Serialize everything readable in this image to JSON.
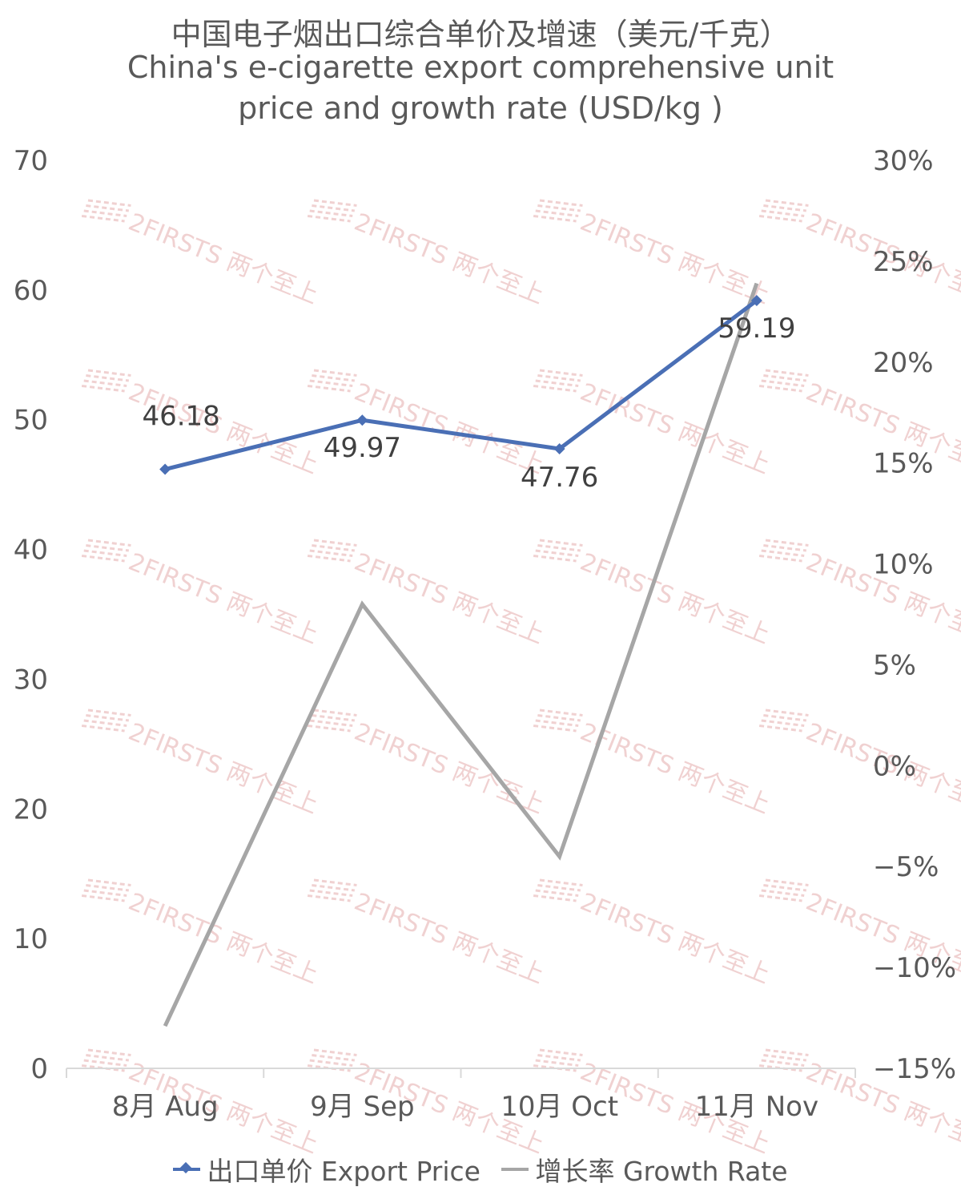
{
  "chart_data": {
    "type": "line",
    "title": "中国电子烟出口综合单价及增速（美元/千克）",
    "subtitle_line1": "China's e-cigarette export comprehensive unit",
    "subtitle_line2": "price and growth rate (USD/kg )",
    "categories": [
      "8月 Aug",
      "9月 Sep",
      "10月 Oct",
      "11月 Nov"
    ],
    "left_axis": {
      "ylim": [
        0,
        70
      ],
      "ticks": [
        "0",
        "10",
        "20",
        "30",
        "40",
        "50",
        "60",
        "70"
      ]
    },
    "right_axis": {
      "ylim": [
        -15,
        30
      ],
      "ticks": [
        "−15%",
        "−10%",
        "−5%",
        "0%",
        "5%",
        "10%",
        "15%",
        "20%",
        "25%",
        "30%"
      ]
    },
    "series": [
      {
        "name": "出口单价 Export Price",
        "axis": "left",
        "values": [
          46.18,
          49.97,
          47.76,
          59.19
        ],
        "labels": [
          "46.18",
          "49.97",
          "47.76",
          "59.19"
        ],
        "color": "#4a6fb5",
        "marker": "diamond"
      },
      {
        "name": "增长率 Growth Rate",
        "axis": "right",
        "values": [
          -12.9,
          8.0,
          -4.5,
          23.9
        ],
        "color": "#a6a6a6"
      }
    ],
    "legend": "bottom",
    "grid": false
  },
  "watermark": {
    "text": "2FIRSTS 两个至上"
  }
}
